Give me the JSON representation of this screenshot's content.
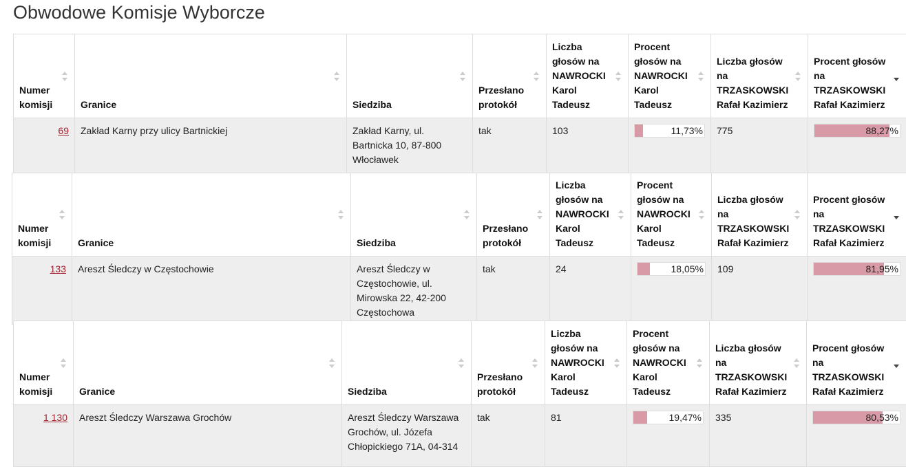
{
  "title": "Obwodowe Komisje Wyborcze",
  "columns": [
    "Numer komisji",
    "Granice",
    "Siedziba",
    "Przesłano protokół",
    "Liczba głosów na NAWROCKI Karol Tadeusz",
    "Procent głosów na NAWROCKI Karol Tadeusz",
    "Liczba głosów na TRZASKOWSKI Rafał Kazimierz",
    "Procent głosów na TRZASKOWSKI Rafał Kazimierz"
  ],
  "tables": [
    {
      "row": [
        "69",
        "Zakład Karny przy ulicy Bartnickiej",
        "Zakład Karny, ul. Bartnicka 10, 87-800 Włocławek",
        "tak",
        103,
        {
          "value": 11.73,
          "label": "11,73%"
        },
        775,
        {
          "value": 88.27,
          "label": "88,27%"
        }
      ]
    },
    {
      "row": [
        "133",
        "Areszt Śledczy w Częstochowie",
        "Areszt Śledczy w Częstochowie, ul. Mirowska 22, 42-200 Częstochowa",
        "tak",
        24,
        {
          "value": 18.05,
          "label": "18,05%"
        },
        109,
        {
          "value": 81.95,
          "label": "81,95%"
        }
      ]
    },
    {
      "row": [
        "1 130",
        "Areszt Śledczy Warszawa Grochów",
        "Areszt Śledczy Warszawa Grochów, ul. Józefa Chłopickiego 71A, 04-314",
        "tak",
        81,
        {
          "value": 19.47,
          "label": "19,47%"
        },
        335,
        {
          "value": 80.53,
          "label": "80,53%"
        }
      ]
    }
  ]
}
